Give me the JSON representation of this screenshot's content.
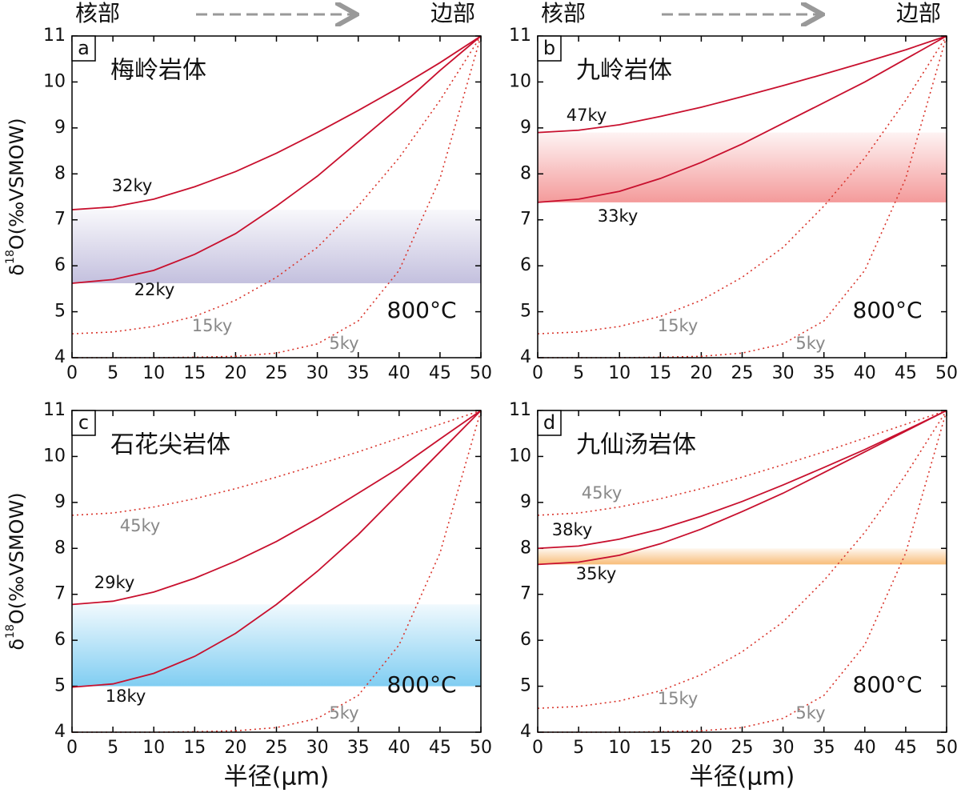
{
  "labels": {
    "core": "核部",
    "rim": "边部",
    "x_axis": "半径(μm)",
    "y_axis": [
      "δ",
      "18",
      "O(‰VSMOW)"
    ]
  },
  "chart_data": [
    {
      "type": "line",
      "panel": "a",
      "title": "梅岭岩体",
      "annotation": "800°C",
      "xlim": [
        0,
        50
      ],
      "ylim": [
        4,
        11
      ],
      "xticks": [
        0,
        5,
        10,
        15,
        20,
        25,
        30,
        35,
        40,
        45,
        50
      ],
      "yticks": [
        4,
        5,
        6,
        7,
        8,
        9,
        10,
        11
      ],
      "x": [
        0,
        5,
        10,
        15,
        20,
        25,
        30,
        35,
        40,
        45,
        50
      ],
      "band": {
        "range": [
          5.62,
          7.22
        ],
        "color": "#aaa5d0"
      },
      "series": [
        {
          "name": "32ky",
          "color": "#c8102e",
          "line_style": "solid",
          "label_color": "#111111",
          "values": [
            7.22,
            7.28,
            7.45,
            7.72,
            8.05,
            8.45,
            8.9,
            9.38,
            9.88,
            10.42,
            11
          ]
        },
        {
          "name": "22ky",
          "color": "#c8102e",
          "line_style": "solid",
          "label_color": "#111111",
          "values": [
            5.62,
            5.7,
            5.9,
            6.25,
            6.7,
            7.3,
            7.95,
            8.7,
            9.45,
            10.25,
            11
          ]
        },
        {
          "name": "15ky",
          "color": "#d9342b",
          "line_style": "dotted",
          "label_color": "#888888",
          "values": [
            4.52,
            4.56,
            4.68,
            4.9,
            5.25,
            5.75,
            6.4,
            7.3,
            8.35,
            9.6,
            11
          ]
        },
        {
          "name": "5ky",
          "color": "#d9342b",
          "line_style": "dotted",
          "label_color": "#888888",
          "values": [
            4,
            4,
            4,
            4.01,
            4.03,
            4.1,
            4.3,
            4.8,
            5.9,
            7.9,
            11
          ]
        }
      ]
    },
    {
      "type": "line",
      "panel": "b",
      "title": "九岭岩体",
      "annotation": "800°C",
      "xlim": [
        0,
        50
      ],
      "ylim": [
        4,
        11
      ],
      "xticks": [
        0,
        5,
        10,
        15,
        20,
        25,
        30,
        35,
        40,
        45,
        50
      ],
      "yticks": [
        4,
        5,
        6,
        7,
        8,
        9,
        10,
        11
      ],
      "x": [
        0,
        5,
        10,
        15,
        20,
        25,
        30,
        35,
        40,
        45,
        50
      ],
      "band": {
        "range": [
          7.38,
          8.9
        ],
        "color": "#ef6f6f"
      },
      "series": [
        {
          "name": "47ky",
          "color": "#c8102e",
          "line_style": "solid",
          "label_color": "#111111",
          "values": [
            8.9,
            8.95,
            9.07,
            9.25,
            9.45,
            9.68,
            9.92,
            10.17,
            10.43,
            10.7,
            11
          ]
        },
        {
          "name": "33ky",
          "color": "#c8102e",
          "line_style": "solid",
          "label_color": "#111111",
          "values": [
            7.38,
            7.45,
            7.62,
            7.9,
            8.25,
            8.65,
            9.1,
            9.55,
            10.0,
            10.5,
            11
          ]
        },
        {
          "name": "15ky",
          "color": "#d9342b",
          "line_style": "dotted",
          "label_color": "#888888",
          "values": [
            4.52,
            4.56,
            4.68,
            4.9,
            5.25,
            5.75,
            6.4,
            7.3,
            8.35,
            9.6,
            11
          ]
        },
        {
          "name": "5ky",
          "color": "#d9342b",
          "line_style": "dotted",
          "label_color": "#888888",
          "values": [
            4,
            4,
            4,
            4.01,
            4.03,
            4.1,
            4.3,
            4.8,
            5.9,
            7.9,
            11
          ]
        }
      ]
    },
    {
      "type": "line",
      "panel": "c",
      "title": "石花尖岩体",
      "annotation": "800°C",
      "xlim": [
        0,
        50
      ],
      "ylim": [
        4,
        11
      ],
      "xticks": [
        0,
        5,
        10,
        15,
        20,
        25,
        30,
        35,
        40,
        45,
        50
      ],
      "yticks": [
        4,
        5,
        6,
        7,
        8,
        9,
        10,
        11
      ],
      "x": [
        0,
        5,
        10,
        15,
        20,
        25,
        30,
        35,
        40,
        45,
        50
      ],
      "band": {
        "range": [
          5.0,
          6.78
        ],
        "color": "#4ab8ec"
      },
      "series": [
        {
          "name": "45ky",
          "color": "#d9342b",
          "line_style": "dotted",
          "label_color": "#888888",
          "values": [
            8.72,
            8.77,
            8.9,
            9.08,
            9.3,
            9.55,
            9.82,
            10.1,
            10.4,
            10.7,
            11
          ]
        },
        {
          "name": "29ky",
          "color": "#c8102e",
          "line_style": "solid",
          "label_color": "#111111",
          "values": [
            6.78,
            6.85,
            7.05,
            7.35,
            7.72,
            8.15,
            8.65,
            9.2,
            9.75,
            10.38,
            11
          ]
        },
        {
          "name": "18ky",
          "color": "#c8102e",
          "line_style": "solid",
          "label_color": "#111111",
          "values": [
            4.98,
            5.05,
            5.28,
            5.65,
            6.15,
            6.78,
            7.5,
            8.3,
            9.2,
            10.1,
            11
          ]
        },
        {
          "name": "5ky",
          "color": "#d9342b",
          "line_style": "dotted",
          "label_color": "#888888",
          "values": [
            4,
            4,
            4,
            4.01,
            4.03,
            4.1,
            4.3,
            4.8,
            5.9,
            7.9,
            11
          ]
        }
      ]
    },
    {
      "type": "line",
      "panel": "d",
      "title": "九仙汤岩体",
      "annotation": "800°C",
      "xlim": [
        0,
        50
      ],
      "ylim": [
        4,
        11
      ],
      "xticks": [
        0,
        5,
        10,
        15,
        20,
        25,
        30,
        35,
        40,
        45,
        50
      ],
      "yticks": [
        4,
        5,
        6,
        7,
        8,
        9,
        10,
        11
      ],
      "x": [
        0,
        5,
        10,
        15,
        20,
        25,
        30,
        35,
        40,
        45,
        50
      ],
      "band": {
        "range": [
          7.65,
          8.0
        ],
        "color": "#f5a040"
      },
      "series": [
        {
          "name": "45ky",
          "color": "#d9342b",
          "line_style": "dotted",
          "label_color": "#888888",
          "values": [
            8.72,
            8.77,
            8.9,
            9.08,
            9.3,
            9.55,
            9.82,
            10.1,
            10.4,
            10.7,
            11
          ]
        },
        {
          "name": "38ky",
          "color": "#c8102e",
          "line_style": "solid",
          "label_color": "#111111",
          "values": [
            8.0,
            8.05,
            8.2,
            8.42,
            8.7,
            9.02,
            9.38,
            9.76,
            10.15,
            10.57,
            11
          ]
        },
        {
          "name": "35ky",
          "color": "#c8102e",
          "line_style": "solid",
          "label_color": "#111111",
          "values": [
            7.65,
            7.7,
            7.85,
            8.1,
            8.42,
            8.8,
            9.2,
            9.65,
            10.1,
            10.55,
            11
          ]
        },
        {
          "name": "15ky",
          "color": "#d9342b",
          "line_style": "dotted",
          "label_color": "#888888",
          "values": [
            4.52,
            4.56,
            4.68,
            4.9,
            5.25,
            5.75,
            6.4,
            7.3,
            8.35,
            9.6,
            11
          ]
        },
        {
          "name": "5ky",
          "color": "#d9342b",
          "line_style": "dotted",
          "label_color": "#888888",
          "values": [
            4,
            4,
            4,
            4.01,
            4.03,
            4.1,
            4.3,
            4.8,
            5.9,
            7.9,
            11
          ]
        }
      ]
    }
  ]
}
